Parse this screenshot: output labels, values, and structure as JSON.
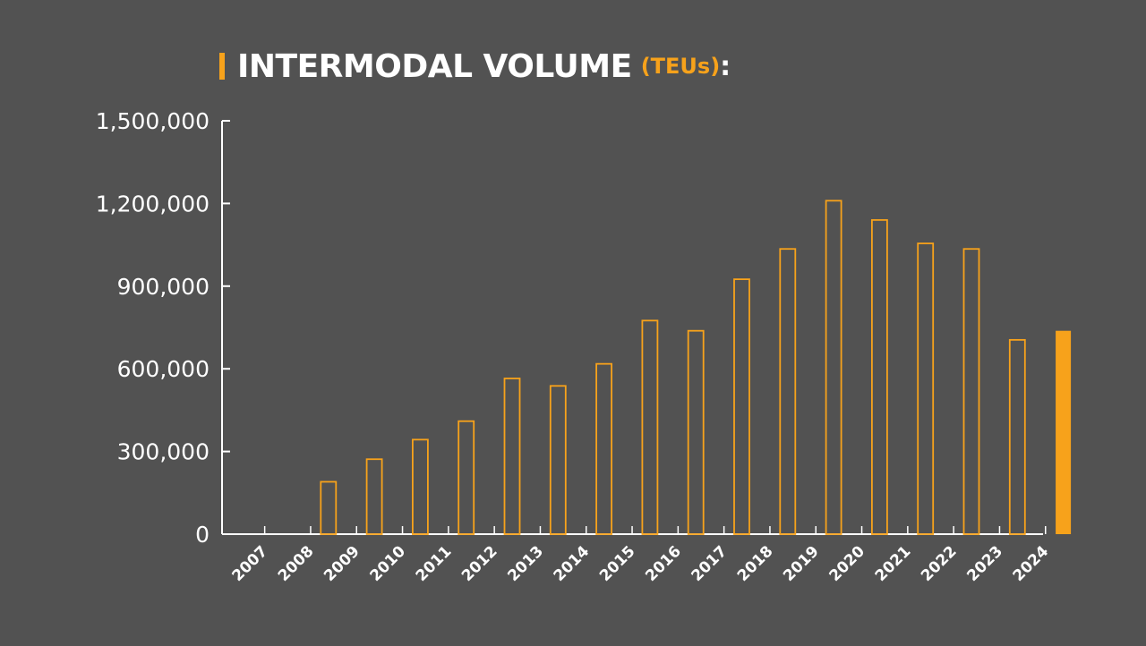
{
  "chart_data": {
    "type": "bar",
    "title": "INTERMODAL VOLUME",
    "title_unit": "(TEUs)",
    "title_suffix": ":",
    "xlabel": "",
    "ylabel": "",
    "categories": [
      "2007",
      "2008",
      "2009",
      "2010",
      "2011",
      "2012",
      "2013",
      "2014",
      "2015",
      "2016",
      "2017",
      "2018",
      "2019",
      "2020",
      "2021",
      "2022",
      "2023",
      "2024"
    ],
    "values": [
      0,
      190000,
      272000,
      343000,
      410000,
      565000,
      538000,
      618000,
      775000,
      738000,
      925000,
      1035000,
      1210000,
      1140000,
      1055000,
      1035000,
      705000,
      738000
    ],
    "highlight_category": "2024",
    "ylim": [
      0,
      1500000
    ],
    "yticks": [
      0,
      300000,
      600000,
      900000,
      1200000,
      1500000
    ],
    "ytick_labels": [
      "0",
      "300,000",
      "600,000",
      "900,000",
      "1,200,000",
      "1,500,000"
    ],
    "grid": false,
    "legend": "none",
    "colors": {
      "background": "#525252",
      "accent": "#f7a21b",
      "axis": "#ffffff",
      "text": "#ffffff"
    }
  }
}
